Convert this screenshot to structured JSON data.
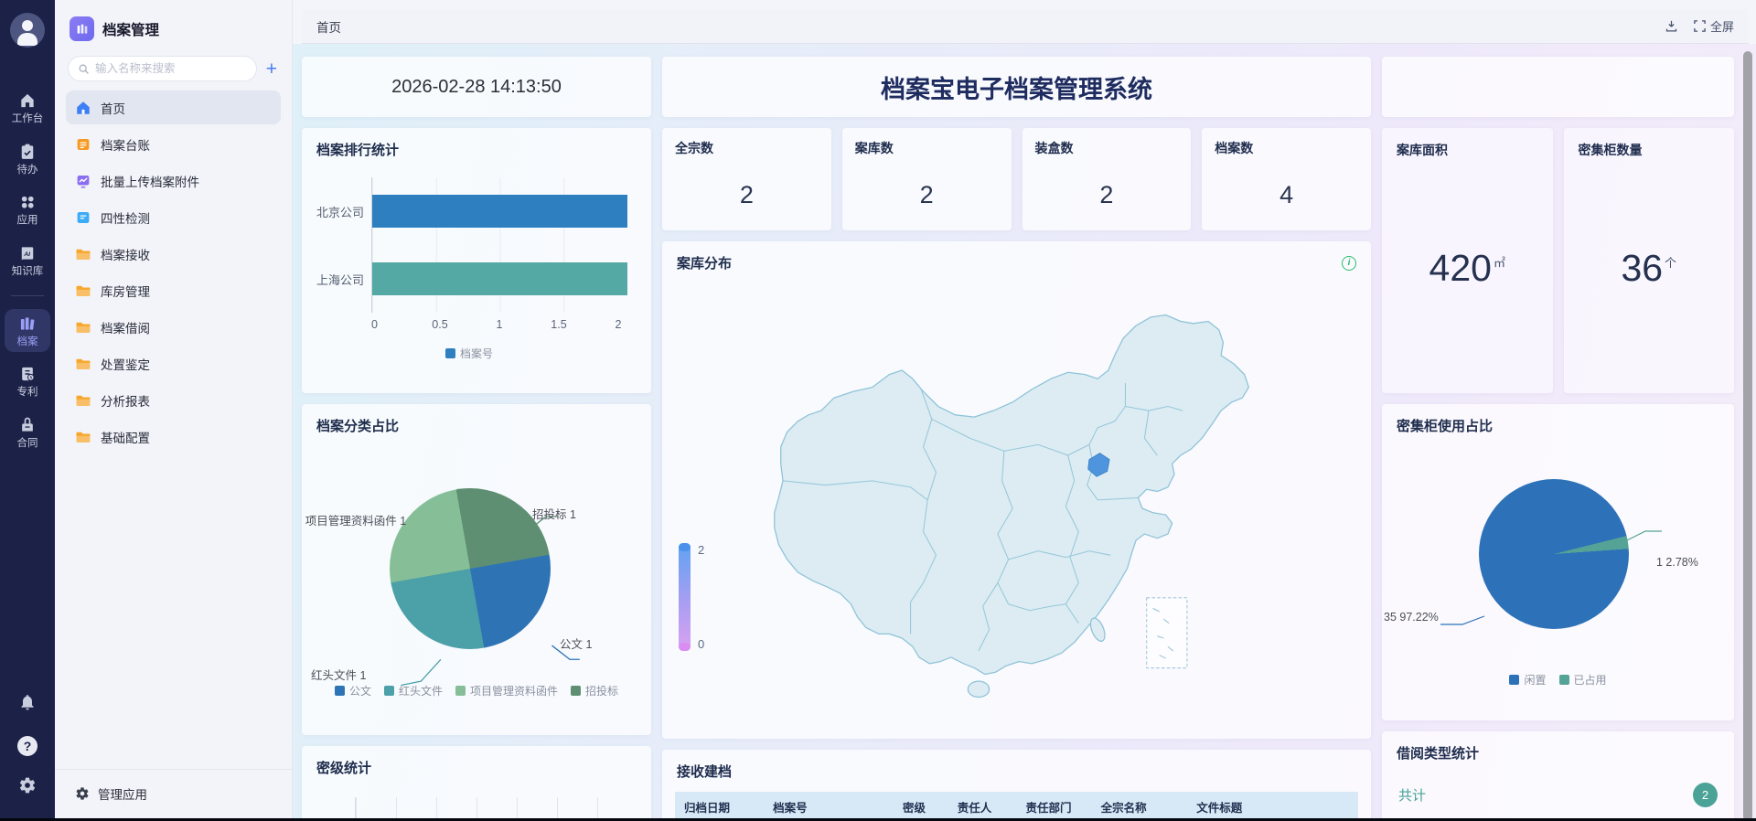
{
  "app": {
    "name": "档案管理"
  },
  "rail": {
    "items": [
      {
        "label": "工作台",
        "icon": "workbench-icon",
        "active": false
      },
      {
        "label": "待办",
        "icon": "todo-icon",
        "active": false
      },
      {
        "label": "应用",
        "icon": "apps-icon",
        "active": false
      },
      {
        "label": "知识库",
        "icon": "knowledge-icon",
        "active": false
      },
      {
        "label": "档案",
        "icon": "archive-icon",
        "active": true
      },
      {
        "label": "专利",
        "icon": "patent-icon",
        "active": false
      },
      {
        "label": "合同",
        "icon": "contract-icon",
        "active": false
      }
    ]
  },
  "sidebar": {
    "title": "档案管理",
    "search": {
      "placeholder": "输入名称来搜索"
    },
    "add_button": "+",
    "menu": [
      {
        "label": "首页",
        "icon": "home-icon",
        "color": "#3D7FF5",
        "active": true
      },
      {
        "label": "档案台账",
        "icon": "ledger-icon",
        "color": "#F59A23",
        "active": false
      },
      {
        "label": "批量上传档案附件",
        "icon": "upload-chart-icon",
        "color": "#8A6DF0",
        "active": false
      },
      {
        "label": "四性检测",
        "icon": "detect-icon",
        "color": "#3BABF7",
        "active": false
      },
      {
        "label": "档案接收",
        "icon": "folder-icon",
        "color": "#F7A72E",
        "active": false
      },
      {
        "label": "库房管理",
        "icon": "folder-icon",
        "color": "#F7A72E",
        "active": false
      },
      {
        "label": "档案借阅",
        "icon": "folder-icon",
        "color": "#F7A72E",
        "active": false
      },
      {
        "label": "处置鉴定",
        "icon": "folder-icon",
        "color": "#F7A72E",
        "active": false
      },
      {
        "label": "分析报表",
        "icon": "folder-icon",
        "color": "#F7A72E",
        "active": false
      },
      {
        "label": "基础配置",
        "icon": "folder-icon",
        "color": "#F7A72E",
        "active": false
      }
    ],
    "footer": {
      "label": "管理应用"
    }
  },
  "topbar": {
    "tab": "首页",
    "fullscreen_label": "全屏"
  },
  "banner": {
    "datetime": "2026-02-28 14:13:50",
    "title": "档案宝电子档案管理系统"
  },
  "stats": [
    {
      "label": "全宗数",
      "value": "2"
    },
    {
      "label": "案库数",
      "value": "2"
    },
    {
      "label": "装盒数",
      "value": "2"
    },
    {
      "label": "档案数",
      "value": "4"
    }
  ],
  "right_stats": [
    {
      "label": "案库面积",
      "value": "420",
      "unit": "㎡"
    },
    {
      "label": "密集柜数量",
      "value": "36",
      "unit": "个"
    }
  ],
  "chart_data": [
    {
      "id": "archive-ranking",
      "type": "bar",
      "title": "档案排行统计",
      "orientation": "horizontal",
      "categories": [
        "北京公司",
        "上海公司"
      ],
      "values": [
        2,
        2
      ],
      "bar_colors": [
        "#2E7FC0",
        "#55A9A4"
      ],
      "x_ticks": [
        "0",
        "0.5",
        "1",
        "1.5",
        "2"
      ],
      "xlim": [
        0,
        2
      ],
      "legend": [
        {
          "label": "档案号",
          "color": "#2E7FC0"
        }
      ]
    },
    {
      "id": "archive-category",
      "type": "pie",
      "title": "档案分类占比",
      "slices": [
        {
          "label": "公文",
          "value": 1,
          "color": "#2E74B5"
        },
        {
          "label": "红头文件",
          "value": 1,
          "color": "#4CA0A8"
        },
        {
          "label": "项目管理资料函件",
          "value": 1,
          "color": "#86BF97"
        },
        {
          "label": "招投标",
          "value": 1,
          "color": "#5F8F72"
        }
      ]
    },
    {
      "id": "repo-distribution",
      "type": "map",
      "title": "案库分布",
      "region": "中国",
      "highlight": "北京",
      "legend_max": "2",
      "legend_min": "0"
    },
    {
      "id": "cabinet-usage",
      "type": "pie",
      "title": "密集柜使用占比",
      "slices": [
        {
          "label": "闲置",
          "value": 35,
          "pct": "97.22%",
          "color": "#2D72B8"
        },
        {
          "label": "已占用",
          "value": 1,
          "pct": "2.78%",
          "color": "#55A396"
        }
      ]
    },
    {
      "id": "secret-level",
      "type": "bar",
      "title": "密级统计",
      "partial": true,
      "visible_bar_color": "#2E7FC0"
    },
    {
      "id": "borrow-type",
      "type": "stat",
      "title": "借阅类型统计",
      "row_label": "共计",
      "badge": "2"
    }
  ],
  "table": {
    "title": "接收建档",
    "headers": [
      "归档日期",
      "档案号",
      "密级",
      "责任人",
      "责任部门",
      "全宗名称",
      "文件标题"
    ]
  }
}
